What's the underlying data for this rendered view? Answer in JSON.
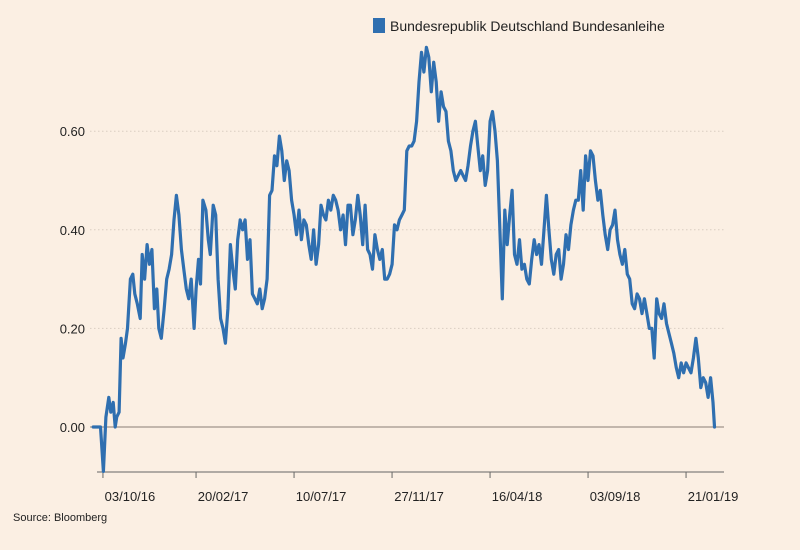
{
  "chart_data": {
    "type": "line",
    "title": "",
    "xlabel": "",
    "ylabel": "",
    "legend_position": "top-right",
    "source": "Source: Bloomberg",
    "ylim": [
      -0.09,
      0.77
    ],
    "y_ticks": [
      {
        "value": 0.0,
        "label": "0.00"
      },
      {
        "value": 0.2,
        "label": "0.20"
      },
      {
        "value": 0.4,
        "label": "0.40"
      },
      {
        "value": 0.6,
        "label": "0.60"
      }
    ],
    "x_ticks": [
      {
        "t": 0.5,
        "label": "03/10/16"
      },
      {
        "t": 19.5,
        "label": "20/02/17"
      },
      {
        "t": 39.5,
        "label": "10/07/17"
      },
      {
        "t": 59.5,
        "label": "27/11/17"
      },
      {
        "t": 79.5,
        "label": "16/04/18"
      },
      {
        "t": 99.5,
        "label": "03/09/18"
      },
      {
        "t": 119.5,
        "label": "21/01/19"
      }
    ],
    "series": [
      {
        "name": "Bundesrepublik Deutschland Bundesanleihe",
        "color": "#2f6fb0",
        "x": [
          -1.5,
          0,
          0.6,
          1.1,
          1.7,
          2.1,
          2.6,
          3.0,
          3.3,
          3.8,
          4.2,
          4.6,
          5.1,
          5.5,
          6.1,
          6.6,
          7.0,
          7.5,
          8.1,
          8.5,
          9.0,
          9.5,
          10.0,
          10.5,
          11.0,
          11.5,
          11.9,
          12.4,
          13.0,
          13.5,
          14.0,
          14.5,
          15.0,
          15.5,
          16.0,
          16.5,
          17.0,
          17.5,
          18.0,
          18.5,
          19.1,
          19.5,
          20.0,
          20.4,
          20.9,
          21.5,
          22.0,
          22.4,
          23.0,
          23.5,
          24.0,
          24.5,
          25.0,
          25.5,
          26.0,
          26.5,
          27.0,
          27.5,
          28.0,
          28.5,
          29.0,
          29.5,
          30.0,
          30.5,
          31.0,
          31.5,
          32.0,
          32.5,
          33.0,
          33.5,
          34.0,
          34.5,
          35.0,
          35.5,
          36.0,
          36.5,
          37.0,
          37.5,
          38.0,
          38.5,
          39.0,
          39.5,
          40.0,
          40.5,
          41.0,
          41.5,
          42.0,
          42.5,
          43.0,
          43.5,
          44.0,
          44.5,
          45.0,
          45.5,
          46.0,
          46.5,
          47.0,
          47.5,
          48.0,
          48.5,
          49.0,
          49.5,
          50.0,
          50.5,
          51.0,
          51.5,
          52.0,
          52.5,
          53.0,
          53.5,
          54.0,
          54.5,
          55.0,
          55.5,
          56.0,
          56.5,
          57.0,
          57.5,
          58.0,
          58.5,
          59.0,
          59.5,
          60.0,
          60.5,
          61.0,
          61.5,
          62.0,
          62.5,
          63.0,
          63.5,
          64.0,
          64.5,
          65.0,
          65.5,
          66.0,
          66.5,
          67.0,
          67.5,
          68.0,
          68.5,
          69.0,
          69.5,
          70.0,
          70.5,
          71.0,
          71.5,
          72.0,
          72.5,
          73.0,
          73.5,
          74.0,
          74.5,
          75.0,
          75.5,
          76.0,
          76.5,
          77.0,
          77.5,
          78.0,
          78.5,
          79.0,
          79.5,
          80.0,
          80.5,
          81.0,
          81.5,
          82.0,
          82.5,
          83.0,
          83.5,
          84.0,
          84.5,
          85.0,
          85.5,
          86.0,
          86.5,
          87.0,
          87.5,
          88.0,
          88.5,
          89.0,
          89.5,
          90.0,
          90.5,
          91.0,
          91.5,
          92.0,
          92.5,
          93.0,
          93.5,
          94.0,
          94.5,
          95.0,
          95.5,
          96.0,
          96.5,
          97.0,
          97.5,
          98.0,
          98.5,
          99.0,
          99.5,
          100.0,
          100.5,
          101.0,
          101.5,
          102.0,
          102.5,
          103.0,
          103.5,
          104.0,
          104.5,
          105.0,
          105.5,
          106.0,
          106.5,
          107.0,
          107.5,
          108.0,
          108.5,
          109.0,
          109.5,
          110.0,
          110.5,
          111.0,
          111.5,
          112.0,
          112.5,
          113.0,
          113.5,
          114.0,
          114.5,
          115.0,
          115.5,
          116.0,
          116.5,
          117.0,
          117.5,
          118.0,
          118.5,
          119.0,
          119.5,
          120.0,
          120.5,
          121.0,
          121.5,
          122.0,
          122.5,
          123.0,
          123.5,
          124.0,
          124.5,
          125.0,
          125.3
        ],
        "values": [
          0.0,
          0.0,
          -0.09,
          0.02,
          0.06,
          0.03,
          0.05,
          0.0,
          0.02,
          0.03,
          0.18,
          0.14,
          0.17,
          0.2,
          0.3,
          0.31,
          0.27,
          0.25,
          0.22,
          0.35,
          0.3,
          0.37,
          0.33,
          0.36,
          0.24,
          0.28,
          0.2,
          0.18,
          0.24,
          0.3,
          0.32,
          0.35,
          0.42,
          0.47,
          0.43,
          0.36,
          0.32,
          0.28,
          0.26,
          0.3,
          0.2,
          0.28,
          0.34,
          0.29,
          0.46,
          0.44,
          0.38,
          0.35,
          0.45,
          0.43,
          0.3,
          0.22,
          0.2,
          0.17,
          0.24,
          0.37,
          0.32,
          0.28,
          0.38,
          0.42,
          0.4,
          0.42,
          0.34,
          0.38,
          0.27,
          0.26,
          0.25,
          0.28,
          0.24,
          0.26,
          0.3,
          0.47,
          0.48,
          0.55,
          0.53,
          0.59,
          0.56,
          0.5,
          0.54,
          0.52,
          0.46,
          0.43,
          0.39,
          0.44,
          0.38,
          0.42,
          0.41,
          0.37,
          0.34,
          0.4,
          0.33,
          0.37,
          0.45,
          0.43,
          0.42,
          0.46,
          0.44,
          0.47,
          0.46,
          0.44,
          0.4,
          0.43,
          0.37,
          0.45,
          0.45,
          0.39,
          0.42,
          0.47,
          0.43,
          0.37,
          0.45,
          0.36,
          0.35,
          0.32,
          0.39,
          0.36,
          0.34,
          0.36,
          0.3,
          0.3,
          0.31,
          0.33,
          0.41,
          0.4,
          0.42,
          0.43,
          0.44,
          0.56,
          0.57,
          0.57,
          0.58,
          0.62,
          0.7,
          0.76,
          0.72,
          0.77,
          0.75,
          0.68,
          0.74,
          0.7,
          0.62,
          0.68,
          0.65,
          0.64,
          0.58,
          0.56,
          0.52,
          0.5,
          0.51,
          0.52,
          0.51,
          0.5,
          0.53,
          0.57,
          0.6,
          0.62,
          0.57,
          0.52,
          0.55,
          0.49,
          0.52,
          0.62,
          0.64,
          0.6,
          0.54,
          0.4,
          0.26,
          0.44,
          0.37,
          0.43,
          0.48,
          0.35,
          0.33,
          0.38,
          0.32,
          0.33,
          0.3,
          0.29,
          0.34,
          0.38,
          0.35,
          0.37,
          0.33,
          0.4,
          0.47,
          0.4,
          0.34,
          0.31,
          0.35,
          0.36,
          0.3,
          0.33,
          0.39,
          0.36,
          0.41,
          0.44,
          0.46,
          0.46,
          0.52,
          0.44,
          0.55,
          0.5,
          0.56,
          0.55,
          0.5,
          0.46,
          0.48,
          0.43,
          0.39,
          0.36,
          0.4,
          0.41,
          0.44,
          0.38,
          0.35,
          0.33,
          0.36,
          0.31,
          0.3,
          0.25,
          0.24,
          0.27,
          0.26,
          0.23,
          0.26,
          0.23,
          0.2,
          0.2,
          0.14,
          0.26,
          0.23,
          0.22,
          0.25,
          0.21,
          0.19,
          0.17,
          0.15,
          0.12,
          0.1,
          0.13,
          0.11,
          0.13,
          0.12,
          0.11,
          0.14,
          0.18,
          0.14,
          0.08,
          0.1,
          0.09,
          0.06,
          0.1,
          0.05,
          0.0
        ]
      }
    ]
  }
}
